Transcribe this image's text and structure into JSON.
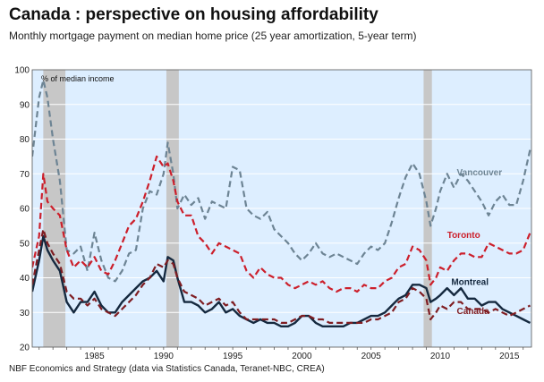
{
  "header": {
    "title": "Canada : perspective on housing affordability",
    "subtitle": "Monthly mortgage payment on median home price (25 year amortization, 5-year term)"
  },
  "footer": {
    "source": "NBF Economics and Strategy (data via Statistics Canada, Teranet-NBC, CREA)"
  },
  "colors": {
    "plot_background": "#ddeeff",
    "recession_band": "#c7c7c7",
    "Vancouver": "#6d8494",
    "Toronto": "#cc1f2b",
    "Montreal": "#15293f",
    "Canada": "#7f1d22"
  },
  "chart_data": {
    "type": "line",
    "title": "Canada : perspective on housing affordability",
    "subtitle": "Monthly mortgage payment on median home price (25 year amortization, 5-year term)",
    "ylabel": "% of median income",
    "xlabel": "",
    "xlim": [
      1980.5,
      2016.6
    ],
    "ylim": [
      20,
      100
    ],
    "yticks": [
      20,
      30,
      40,
      50,
      60,
      70,
      80,
      90,
      100
    ],
    "xticks": [
      1985,
      1990,
      1995,
      2000,
      2005,
      2010,
      2015
    ],
    "grid": "horizontal",
    "recessions": [
      [
        1981.3,
        1982.9
      ],
      [
        1990.2,
        1991.1
      ],
      [
        2008.8,
        2009.4
      ]
    ],
    "series": [
      {
        "name": "Vancouver",
        "style": "dashed",
        "x": [
          1980.5,
          1981.0,
          1981.3,
          1981.6,
          1982.0,
          1982.5,
          1983.0,
          1983.5,
          1984.0,
          1984.5,
          1985.0,
          1985.5,
          1986.0,
          1986.5,
          1987.0,
          1987.5,
          1988.0,
          1988.5,
          1989.0,
          1989.5,
          1990.0,
          1990.3,
          1990.7,
          1991.0,
          1991.5,
          1992.0,
          1992.5,
          1993.0,
          1993.5,
          1994.0,
          1994.5,
          1995.0,
          1995.5,
          1996.0,
          1996.5,
          1997.0,
          1997.5,
          1998.0,
          1998.5,
          1999.0,
          1999.5,
          2000.0,
          2000.5,
          2001.0,
          2001.5,
          2002.0,
          2002.5,
          2003.0,
          2003.5,
          2004.0,
          2004.5,
          2005.0,
          2005.5,
          2006.0,
          2006.5,
          2007.0,
          2007.5,
          2008.0,
          2008.5,
          2009.0,
          2009.3,
          2009.7,
          2010.0,
          2010.5,
          2011.0,
          2011.5,
          2012.0,
          2012.5,
          2013.0,
          2013.5,
          2014.0,
          2014.5,
          2015.0,
          2015.5,
          2016.0,
          2016.5
        ],
        "values": [
          75,
          92,
          97,
          92,
          80,
          68,
          48,
          47,
          49,
          42,
          53,
          45,
          40,
          39,
          42,
          47,
          48,
          60,
          65,
          64,
          70,
          79,
          70,
          60,
          64,
          61,
          63,
          57,
          62,
          61,
          60,
          72,
          71,
          60,
          58,
          57,
          59,
          54,
          52,
          50,
          47,
          45,
          47,
          50,
          47,
          46,
          47,
          46,
          45,
          44,
          47,
          49,
          48,
          50,
          56,
          63,
          69,
          73,
          70,
          62,
          55,
          60,
          65,
          70,
          66,
          70,
          68,
          65,
          62,
          58,
          62,
          64,
          61,
          61,
          68,
          77
        ]
      },
      {
        "name": "Toronto",
        "style": "dashed",
        "x": [
          1980.5,
          1981.0,
          1981.3,
          1981.6,
          1982.0,
          1982.5,
          1983.0,
          1983.5,
          1984.0,
          1984.5,
          1985.0,
          1985.5,
          1986.0,
          1986.5,
          1987.0,
          1987.5,
          1988.0,
          1988.5,
          1989.0,
          1989.5,
          1990.0,
          1990.3,
          1990.7,
          1991.0,
          1991.5,
          1992.0,
          1992.5,
          1993.0,
          1993.5,
          1994.0,
          1994.5,
          1995.0,
          1995.5,
          1996.0,
          1996.5,
          1997.0,
          1997.5,
          1998.0,
          1998.5,
          1999.0,
          1999.5,
          2000.0,
          2000.5,
          2001.0,
          2001.5,
          2002.0,
          2002.5,
          2003.0,
          2003.5,
          2004.0,
          2004.5,
          2005.0,
          2005.5,
          2006.0,
          2006.5,
          2007.0,
          2007.5,
          2008.0,
          2008.5,
          2009.0,
          2009.3,
          2009.7,
          2010.0,
          2010.5,
          2011.0,
          2011.5,
          2012.0,
          2012.5,
          2013.0,
          2013.5,
          2014.0,
          2014.5,
          2015.0,
          2015.5,
          2016.0,
          2016.5
        ],
        "values": [
          43,
          52,
          70,
          62,
          60,
          58,
          48,
          43,
          45,
          43,
          46,
          42,
          41,
          45,
          50,
          55,
          57,
          62,
          68,
          75,
          72,
          73,
          68,
          62,
          58,
          58,
          52,
          50,
          47,
          50,
          49,
          48,
          47,
          42,
          40,
          43,
          41,
          40,
          40,
          38,
          37,
          38,
          39,
          38,
          39,
          37,
          36,
          37,
          37,
          36,
          38,
          37,
          37,
          39,
          40,
          43,
          44,
          49,
          48,
          45,
          38,
          40,
          43,
          42,
          45,
          47,
          47,
          46,
          46,
          50,
          49,
          48,
          47,
          47,
          48,
          53
        ]
      },
      {
        "name": "Montreal",
        "style": "solid",
        "x": [
          1980.5,
          1981.0,
          1981.3,
          1981.6,
          1982.0,
          1982.5,
          1983.0,
          1983.5,
          1984.0,
          1984.5,
          1985.0,
          1985.5,
          1986.0,
          1986.5,
          1987.0,
          1987.5,
          1988.0,
          1988.5,
          1989.0,
          1989.5,
          1990.0,
          1990.3,
          1990.7,
          1991.0,
          1991.5,
          1992.0,
          1992.5,
          1993.0,
          1993.5,
          1994.0,
          1994.5,
          1995.0,
          1995.5,
          1996.0,
          1996.5,
          1997.0,
          1997.5,
          1998.0,
          1998.5,
          1999.0,
          1999.5,
          2000.0,
          2000.5,
          2001.0,
          2001.5,
          2002.0,
          2002.5,
          2003.0,
          2003.5,
          2004.0,
          2004.5,
          2005.0,
          2005.5,
          2006.0,
          2006.5,
          2007.0,
          2007.5,
          2008.0,
          2008.5,
          2009.0,
          2009.3,
          2009.7,
          2010.0,
          2010.5,
          2011.0,
          2011.5,
          2012.0,
          2012.5,
          2013.0,
          2013.5,
          2014.0,
          2014.5,
          2015.0,
          2015.5,
          2016.0,
          2016.5
        ],
        "values": [
          36,
          45,
          52,
          48,
          45,
          42,
          33,
          30,
          33,
          33,
          36,
          32,
          30,
          30,
          33,
          35,
          37,
          39,
          40,
          42,
          39,
          46,
          45,
          40,
          33,
          33,
          32,
          30,
          31,
          33,
          30,
          31,
          29,
          28,
          27,
          28,
          27,
          27,
          26,
          26,
          27,
          29,
          29,
          27,
          26,
          26,
          26,
          26,
          27,
          27,
          28,
          29,
          29,
          30,
          32,
          34,
          35,
          38,
          38,
          37,
          33,
          34,
          35,
          37,
          35,
          37,
          34,
          34,
          32,
          33,
          33,
          31,
          30,
          29,
          28,
          27
        ]
      },
      {
        "name": "Canada",
        "style": "dashed",
        "x": [
          1980.5,
          1981.0,
          1981.3,
          1981.6,
          1982.0,
          1982.5,
          1983.0,
          1983.5,
          1984.0,
          1984.5,
          1985.0,
          1985.5,
          1986.0,
          1986.5,
          1987.0,
          1987.5,
          1988.0,
          1988.5,
          1989.0,
          1989.5,
          1990.0,
          1990.3,
          1990.7,
          1991.0,
          1991.5,
          1992.0,
          1992.5,
          1993.0,
          1993.5,
          1994.0,
          1994.5,
          1995.0,
          1995.5,
          1996.0,
          1996.5,
          1997.0,
          1997.5,
          1998.0,
          1998.5,
          1999.0,
          1999.5,
          2000.0,
          2000.5,
          2001.0,
          2001.5,
          2002.0,
          2002.5,
          2003.0,
          2003.5,
          2004.0,
          2004.5,
          2005.0,
          2005.5,
          2006.0,
          2006.5,
          2007.0,
          2007.5,
          2008.0,
          2008.5,
          2009.0,
          2009.3,
          2009.7,
          2010.0,
          2010.5,
          2011.0,
          2011.5,
          2012.0,
          2012.5,
          2013.0,
          2013.5,
          2014.0,
          2014.5,
          2015.0,
          2015.5,
          2016.0,
          2016.5
        ],
        "values": [
          38,
          48,
          54,
          50,
          47,
          44,
          36,
          34,
          34,
          32,
          34,
          31,
          30,
          29,
          31,
          33,
          35,
          38,
          40,
          44,
          43,
          45,
          44,
          40,
          36,
          35,
          34,
          32,
          33,
          34,
          32,
          33,
          30,
          28,
          28,
          28,
          28,
          28,
          27,
          27,
          28,
          29,
          29,
          28,
          28,
          27,
          27,
          27,
          27,
          27,
          27,
          28,
          28,
          29,
          30,
          33,
          34,
          37,
          36,
          34,
          28,
          30,
          32,
          31,
          33,
          33,
          31,
          31,
          31,
          30,
          31,
          30,
          29,
          30,
          31,
          32
        ]
      }
    ],
    "series_labels": [
      "Vancouver",
      "Toronto",
      "Montreal",
      "Canada"
    ]
  }
}
